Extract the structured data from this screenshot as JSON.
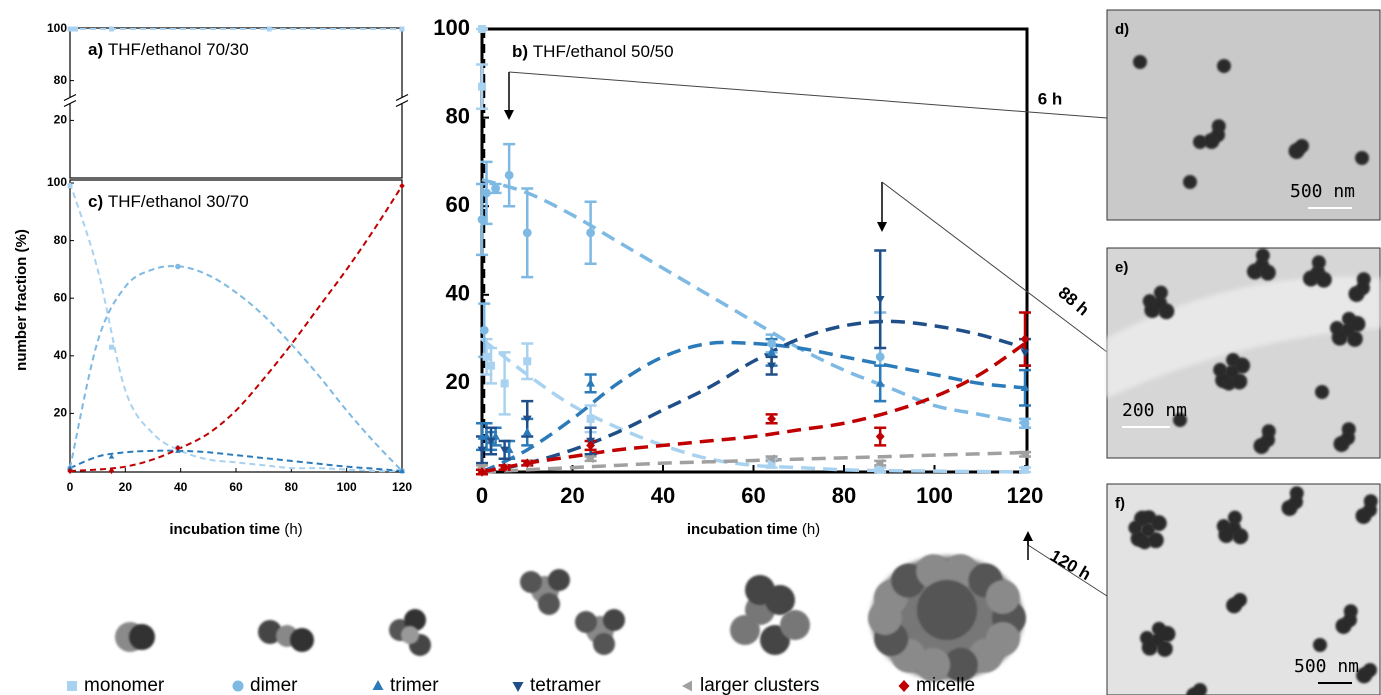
{
  "chart_data": [
    {
      "type": "scatter",
      "panel_label": "a)",
      "title": "THF/ethanol 70/30",
      "xlim": [
        0,
        120
      ],
      "ylim": [
        0,
        100
      ],
      "ybreak": [
        25,
        75
      ],
      "yticks": [
        20,
        80,
        100
      ],
      "fit_x": [
        0,
        120
      ],
      "series": [
        {
          "color": "#a9d2f0",
          "marker": "square",
          "x": [
            0,
            1,
            2,
            15,
            72,
            120
          ],
          "values": [
            100,
            100,
            100,
            100,
            100,
            100
          ],
          "fit": [
            100,
            100
          ]
        }
      ]
    },
    {
      "type": "scatter",
      "panel_label": "c)",
      "title": "THF/ethanol 30/70",
      "xlabel": "incubation time",
      "xlabel_unit": "(h)",
      "ylabel": "number fraction (%)",
      "xlim": [
        0,
        120
      ],
      "xticks": [
        0,
        20,
        40,
        60,
        80,
        100,
        120
      ],
      "ylim": [
        0,
        100
      ],
      "yticks": [
        20,
        40,
        60,
        80,
        100
      ],
      "fit_x": [
        0,
        10,
        20,
        30,
        40,
        50,
        60,
        70,
        80,
        90,
        100,
        110,
        120
      ],
      "series": [
        {
          "color": "#a9d2f0",
          "marker": "square",
          "x": [
            0,
            15,
            39,
            120
          ],
          "values": [
            99,
            43,
            8,
            0
          ],
          "fit": [
            100,
            70,
            28,
            13,
            7,
            4,
            3,
            2,
            1,
            1,
            0.5,
            0,
            0
          ]
        },
        {
          "color": "#7db9e3",
          "marker": "circle",
          "x": [
            0,
            39,
            120
          ],
          "values": [
            1,
            71,
            0
          ],
          "fit": [
            1,
            45,
            64,
            70,
            71,
            68,
            62,
            54,
            44,
            33,
            21,
            10,
            0
          ]
        },
        {
          "color": "#2b7bba",
          "marker": "tri-up",
          "x": [
            0,
            15,
            39,
            120
          ],
          "values": [
            1,
            5,
            7,
            0
          ],
          "fit": [
            1,
            5,
            6.5,
            7,
            7,
            6.5,
            5.5,
            4.5,
            3.5,
            2.5,
            1.5,
            0.8,
            0
          ]
        },
        {
          "color": "#c00000",
          "marker": "diamond",
          "x": [
            0,
            15,
            39,
            120
          ],
          "values": [
            0,
            0,
            8,
            99
          ],
          "fit": [
            0,
            0.5,
            1.5,
            4,
            8,
            13,
            21,
            32,
            44,
            57,
            70,
            84,
            99
          ]
        }
      ]
    },
    {
      "type": "scatter",
      "panel_label": "b)",
      "title": "THF/ethanol 50/50",
      "xlabel": "incubation time",
      "xlabel_unit": "(h)",
      "xlim": [
        0,
        120
      ],
      "xticks": [
        0,
        20,
        40,
        60,
        80,
        100,
        120
      ],
      "ylim": [
        0,
        100
      ],
      "yticks": [
        20,
        40,
        60,
        80,
        100
      ],
      "fit_x": [
        0,
        10,
        20,
        30,
        40,
        50,
        60,
        70,
        80,
        90,
        100,
        110,
        120
      ],
      "series": [
        {
          "color": "#a9d2f0",
          "marker": "square",
          "x": [
            0,
            0,
            1,
            2,
            5,
            10,
            24,
            64,
            88,
            120
          ],
          "values": [
            100,
            87,
            26,
            24,
            20,
            25,
            12,
            2,
            0.5,
            0.5
          ],
          "errors": [
            0,
            5,
            4,
            4,
            7,
            4,
            3,
            1,
            0.5,
            0.5
          ],
          "fit": [
            30,
            22,
            15,
            10,
            6,
            3,
            1.5,
            1,
            0.5,
            0.3,
            0.2,
            0.1,
            0
          ]
        },
        {
          "color": "#7db9e3",
          "marker": "circle",
          "x": [
            0,
            0.5,
            1,
            3,
            6,
            10,
            24,
            64,
            88,
            120
          ],
          "values": [
            57,
            32,
            63,
            64,
            67,
            54,
            54,
            29,
            26,
            11
          ],
          "errors": [
            8,
            6,
            7,
            1,
            7,
            10,
            7,
            2,
            10,
            1
          ],
          "fit": [
            66,
            63,
            58,
            52,
            46,
            40,
            34,
            28,
            23,
            19,
            15,
            13,
            11
          ]
        },
        {
          "color": "#2b7bba",
          "marker": "tri-up",
          "x": [
            0,
            1,
            2,
            3,
            6,
            10,
            24,
            64,
            88,
            120
          ],
          "values": [
            8,
            8,
            7,
            8,
            5,
            9,
            20,
            27,
            20,
            19
          ],
          "errors": [
            3,
            3,
            2,
            2,
            2,
            3,
            2,
            3,
            4,
            4
          ],
          "fit": [
            0,
            5,
            12,
            20,
            26,
            29,
            29,
            28,
            26,
            24,
            22,
            20,
            19
          ]
        },
        {
          "color": "#1f4e89",
          "marker": "tri-down",
          "x": [
            0,
            2,
            5,
            10,
            24,
            64,
            88,
            120
          ],
          "values": [
            5,
            7,
            5,
            12,
            7,
            24,
            39,
            27
          ],
          "errors": [
            3,
            3,
            2,
            4,
            3,
            2,
            11,
            3
          ],
          "fit": [
            0,
            2,
            5,
            9,
            14,
            19,
            25,
            30,
            33,
            34,
            33,
            31,
            28
          ]
        },
        {
          "color": "#a0a0a0",
          "marker": "tri-left",
          "x": [
            0,
            5,
            10,
            24,
            64,
            88,
            120
          ],
          "values": [
            1,
            1,
            2,
            3,
            3,
            2,
            4
          ],
          "errors": [
            0.5,
            0.5,
            0.5,
            0.5,
            0.5,
            0.5,
            0.5
          ],
          "fit": [
            0,
            0.5,
            1,
            1.5,
            2,
            2.3,
            2.6,
            2.9,
            3.2,
            3.5,
            3.8,
            4.1,
            4.4
          ]
        },
        {
          "color": "#c00000",
          "marker": "diamond",
          "x": [
            0,
            5,
            10,
            24,
            64,
            88,
            120
          ],
          "values": [
            0,
            1,
            2,
            6,
            12,
            8,
            30
          ],
          "errors": [
            0.5,
            0.5,
            0.5,
            1,
            1,
            2,
            6
          ],
          "fit": [
            0,
            2,
            3.5,
            5,
            6,
            7,
            8,
            9.5,
            11,
            13.5,
            17,
            22,
            29
          ]
        }
      ]
    }
  ],
  "legend": [
    {
      "name": "monomer",
      "color": "#a9d2f0",
      "marker": "square"
    },
    {
      "name": "dimer",
      "color": "#7db9e3",
      "marker": "circle"
    },
    {
      "name": "trimer",
      "color": "#2b7bba",
      "marker": "tri-up"
    },
    {
      "name": "tetramer",
      "color": "#1f4e89",
      "marker": "tri-down"
    },
    {
      "name": "larger clusters",
      "color": "#a0a0a0",
      "marker": "tri-left"
    },
    {
      "name": "micelle",
      "color": "#c00000",
      "marker": "diamond"
    }
  ],
  "images": [
    {
      "label": "d)",
      "time": "6 h",
      "scale": "500 nm"
    },
    {
      "label": "e)",
      "time": "88 h",
      "scale": "200 nm"
    },
    {
      "label": "f)",
      "time": "120 h",
      "scale": "500 nm"
    }
  ]
}
